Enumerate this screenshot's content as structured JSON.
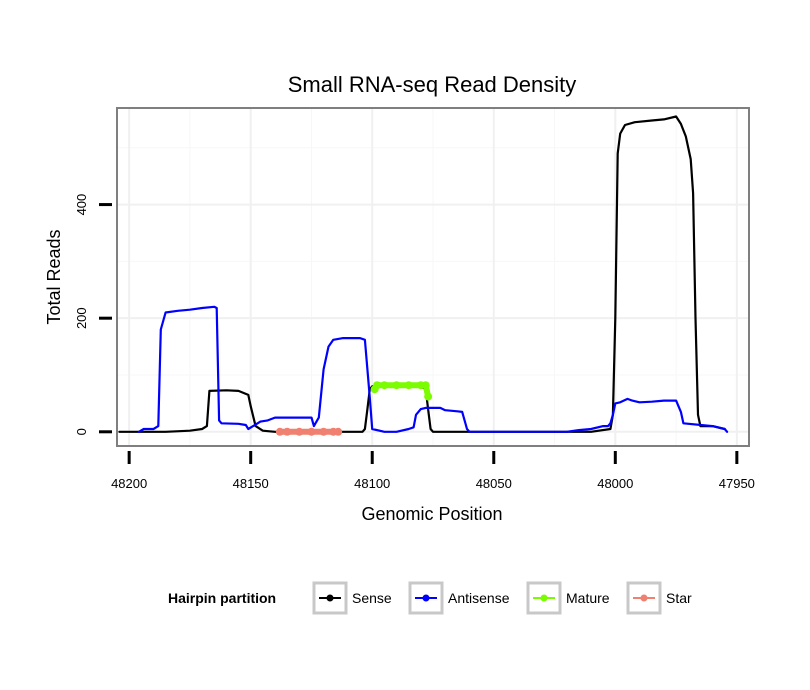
{
  "chart_data": {
    "type": "line",
    "title": "Small RNA-seq Read Density",
    "xlabel": "Genomic Position",
    "ylabel": "Total Reads",
    "xlim": [
      48205,
      47945
    ],
    "ylim": [
      -25,
      570
    ],
    "x_reversed": true,
    "x_ticks": [
      48200,
      48150,
      48100,
      48050,
      48000,
      47950
    ],
    "y_ticks": [
      0,
      200,
      400
    ],
    "grid": true,
    "legend": {
      "title": "Hairpin partition",
      "placement": "bottom",
      "entries": [
        "Sense",
        "Antisense",
        "Mature",
        "Star"
      ]
    },
    "series": [
      {
        "name": "Sense",
        "color": "#000000",
        "points": [
          [
            48204,
            0
          ],
          [
            48185,
            0
          ],
          [
            48175,
            2
          ],
          [
            48170,
            5
          ],
          [
            48168,
            10
          ],
          [
            48167,
            72
          ],
          [
            48160,
            73
          ],
          [
            48155,
            72
          ],
          [
            48151,
            65
          ],
          [
            48150,
            45
          ],
          [
            48148,
            10
          ],
          [
            48145,
            2
          ],
          [
            48140,
            0
          ],
          [
            48125,
            0
          ],
          [
            48110,
            0
          ],
          [
            48104,
            0
          ],
          [
            48103,
            5
          ],
          [
            48102,
            40
          ],
          [
            48101,
            75
          ],
          [
            48100,
            80
          ],
          [
            48080,
            80
          ],
          [
            48078,
            75
          ],
          [
            48077,
            40
          ],
          [
            48076,
            5
          ],
          [
            48075,
            0
          ],
          [
            48050,
            0
          ],
          [
            48010,
            0
          ],
          [
            48002,
            5
          ],
          [
            48001,
            30
          ],
          [
            48000,
            200
          ],
          [
            47999,
            490
          ],
          [
            47998,
            525
          ],
          [
            47996,
            540
          ],
          [
            47992,
            545
          ],
          [
            47985,
            548
          ],
          [
            47980,
            550
          ],
          [
            47975,
            555
          ],
          [
            47973,
            542
          ],
          [
            47971,
            520
          ],
          [
            47969,
            480
          ],
          [
            47968,
            420
          ],
          [
            47967,
            200
          ],
          [
            47966,
            30
          ],
          [
            47965,
            10
          ],
          [
            47960,
            10
          ],
          [
            47955,
            5
          ]
        ]
      },
      {
        "name": "Antisense",
        "color": "#0000ff",
        "points": [
          [
            48196,
            0
          ],
          [
            48194,
            5
          ],
          [
            48190,
            5
          ],
          [
            48188,
            10
          ],
          [
            48187,
            180
          ],
          [
            48185,
            210
          ],
          [
            48180,
            213
          ],
          [
            48175,
            215
          ],
          [
            48170,
            218
          ],
          [
            48165,
            220
          ],
          [
            48164,
            218
          ],
          [
            48163,
            20
          ],
          [
            48162,
            15
          ],
          [
            48155,
            14
          ],
          [
            48152,
            12
          ],
          [
            48151,
            5
          ],
          [
            48149,
            10
          ],
          [
            48146,
            18
          ],
          [
            48143,
            20
          ],
          [
            48140,
            25
          ],
          [
            48133,
            25
          ],
          [
            48127,
            25
          ],
          [
            48125,
            25
          ],
          [
            48124,
            10
          ],
          [
            48122,
            25
          ],
          [
            48120,
            110
          ],
          [
            48118,
            150
          ],
          [
            48116,
            162
          ],
          [
            48112,
            165
          ],
          [
            48105,
            165
          ],
          [
            48103,
            162
          ],
          [
            48101,
            60
          ],
          [
            48100,
            5
          ],
          [
            48095,
            0
          ],
          [
            48090,
            0
          ],
          [
            48085,
            5
          ],
          [
            48083,
            8
          ],
          [
            48082,
            30
          ],
          [
            48080,
            40
          ],
          [
            48078,
            42
          ],
          [
            48072,
            42
          ],
          [
            48070,
            38
          ],
          [
            48065,
            36
          ],
          [
            48063,
            35
          ],
          [
            48061,
            5
          ],
          [
            48060,
            0
          ],
          [
            48040,
            0
          ],
          [
            48020,
            0
          ],
          [
            48015,
            3
          ],
          [
            48010,
            5
          ],
          [
            48005,
            10
          ],
          [
            48003,
            10
          ],
          [
            48002,
            15
          ],
          [
            48001,
            30
          ],
          [
            48000,
            50
          ],
          [
            47998,
            52
          ],
          [
            47995,
            58
          ],
          [
            47993,
            55
          ],
          [
            47990,
            52
          ],
          [
            47985,
            53
          ],
          [
            47980,
            55
          ],
          [
            47975,
            55
          ],
          [
            47973,
            35
          ],
          [
            47972,
            15
          ],
          [
            47960,
            10
          ],
          [
            47955,
            5
          ],
          [
            47954,
            0
          ]
        ]
      },
      {
        "name": "Mature",
        "color": "#7cfc00",
        "points": [
          [
            48099,
            75
          ],
          [
            48098,
            82
          ],
          [
            48095,
            82
          ],
          [
            48090,
            82
          ],
          [
            48085,
            82
          ],
          [
            48080,
            82
          ],
          [
            48078,
            82
          ],
          [
            48077,
            62
          ]
        ]
      },
      {
        "name": "Star",
        "color": "#f08070",
        "points": [
          [
            48138,
            0
          ],
          [
            48135,
            0
          ],
          [
            48130,
            0
          ],
          [
            48125,
            0
          ],
          [
            48120,
            0
          ],
          [
            48116,
            0
          ],
          [
            48114,
            0
          ]
        ]
      }
    ]
  }
}
